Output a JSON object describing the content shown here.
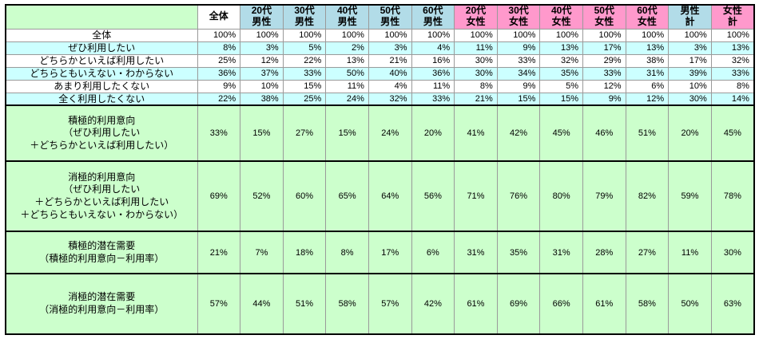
{
  "table": {
    "corner_label": "",
    "colors": {
      "male_header": "#b2dce8",
      "female_header": "#ff99cc",
      "stripe_row": "#ccffff",
      "summary_row": "#ccffcc",
      "grid_line": "#9a9a9a",
      "outer_border": "#000000"
    },
    "columns": [
      {
        "label": "全体",
        "group": "overall"
      },
      {
        "label": "20代\n男性",
        "group": "male"
      },
      {
        "label": "30代\n男性",
        "group": "male"
      },
      {
        "label": "40代\n男性",
        "group": "male"
      },
      {
        "label": "50代\n男性",
        "group": "male"
      },
      {
        "label": "60代\n男性",
        "group": "male"
      },
      {
        "label": "20代\n女性",
        "group": "female"
      },
      {
        "label": "30代\n女性",
        "group": "female"
      },
      {
        "label": "40代\n女性",
        "group": "female"
      },
      {
        "label": "50代\n女性",
        "group": "female"
      },
      {
        "label": "60代\n女性",
        "group": "female"
      },
      {
        "label": "男性\n計",
        "group": "male"
      },
      {
        "label": "女性\n計",
        "group": "female"
      }
    ],
    "rows": [
      {
        "label": "全体",
        "kind": "plain",
        "shade": "white",
        "values": [
          "100%",
          "100%",
          "100%",
          "100%",
          "100%",
          "100%",
          "100%",
          "100%",
          "100%",
          "100%",
          "100%",
          "100%",
          "100%"
        ]
      },
      {
        "label": "ぜひ利用したい",
        "kind": "plain",
        "shade": "stripe",
        "values": [
          "8%",
          "3%",
          "5%",
          "2%",
          "3%",
          "4%",
          "11%",
          "9%",
          "13%",
          "17%",
          "13%",
          "3%",
          "13%"
        ]
      },
      {
        "label": "どちらかといえば利用したい",
        "kind": "plain",
        "shade": "white",
        "values": [
          "25%",
          "12%",
          "22%",
          "13%",
          "21%",
          "16%",
          "30%",
          "33%",
          "32%",
          "29%",
          "38%",
          "17%",
          "32%"
        ]
      },
      {
        "label": "どちらともいえない・わからない",
        "kind": "plain",
        "shade": "stripe",
        "values": [
          "36%",
          "37%",
          "33%",
          "50%",
          "40%",
          "36%",
          "30%",
          "34%",
          "35%",
          "33%",
          "31%",
          "39%",
          "33%"
        ]
      },
      {
        "label": "あまり利用したくない",
        "kind": "plain",
        "shade": "white",
        "values": [
          "9%",
          "10%",
          "15%",
          "11%",
          "4%",
          "11%",
          "8%",
          "9%",
          "5%",
          "12%",
          "6%",
          "10%",
          "8%"
        ]
      },
      {
        "label": "全く利用したくない",
        "kind": "plain",
        "shade": "stripe",
        "values": [
          "22%",
          "38%",
          "25%",
          "24%",
          "32%",
          "33%",
          "21%",
          "15%",
          "15%",
          "9%",
          "12%",
          "30%",
          "14%"
        ]
      },
      {
        "label": "積極的利用意向\n（ぜひ利用したい\n＋どちらかといえば利用したい）",
        "kind": "summary",
        "values": [
          "33%",
          "15%",
          "27%",
          "15%",
          "24%",
          "20%",
          "41%",
          "42%",
          "45%",
          "46%",
          "51%",
          "20%",
          "45%"
        ]
      },
      {
        "label": "消極的利用意向\n（ぜひ利用したい\n＋どちらかといえば利用したい\n＋どちらともいえない・わからない）",
        "kind": "summary",
        "values": [
          "69%",
          "52%",
          "60%",
          "65%",
          "64%",
          "56%",
          "71%",
          "76%",
          "80%",
          "79%",
          "82%",
          "59%",
          "78%"
        ]
      },
      {
        "label": "積極的潜在需要\n（積極的利用意向－利用率）",
        "kind": "summary",
        "values": [
          "21%",
          "7%",
          "18%",
          "8%",
          "17%",
          "6%",
          "31%",
          "35%",
          "31%",
          "28%",
          "27%",
          "11%",
          "30%"
        ]
      },
      {
        "label": "消極的潜在需要\n（消極的利用意向－利用率）",
        "kind": "summary",
        "values": [
          "57%",
          "44%",
          "51%",
          "58%",
          "57%",
          "42%",
          "61%",
          "69%",
          "66%",
          "61%",
          "58%",
          "50%",
          "63%"
        ]
      }
    ]
  }
}
